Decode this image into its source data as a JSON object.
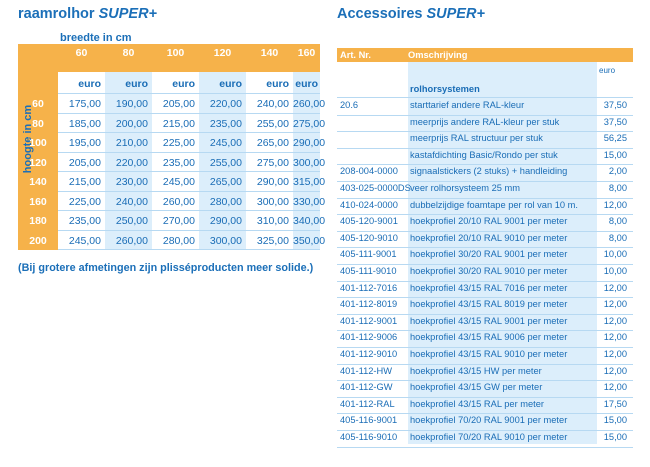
{
  "left": {
    "title_main": "raamrolhor ",
    "title_em": "SUPER+",
    "width_label": "breedte in cm",
    "height_label": "hoogte in cm",
    "widths": [
      "60",
      "80",
      "100",
      "120",
      "140",
      "160"
    ],
    "currency": "euro",
    "heights": [
      "60",
      "80",
      "100",
      "120",
      "140",
      "160",
      "180",
      "200"
    ],
    "prices": [
      [
        "175,00",
        "190,00",
        "205,00",
        "220,00",
        "240,00",
        "260,00"
      ],
      [
        "185,00",
        "200,00",
        "215,00",
        "235,00",
        "255,00",
        "275,00"
      ],
      [
        "195,00",
        "210,00",
        "225,00",
        "245,00",
        "265,00",
        "290,00"
      ],
      [
        "205,00",
        "220,00",
        "235,00",
        "255,00",
        "275,00",
        "300,00"
      ],
      [
        "215,00",
        "230,00",
        "245,00",
        "265,00",
        "290,00",
        "315,00"
      ],
      [
        "225,00",
        "240,00",
        "260,00",
        "280,00",
        "300,00",
        "330,00"
      ],
      [
        "235,00",
        "250,00",
        "270,00",
        "290,00",
        "310,00",
        "340,00"
      ],
      [
        "245,00",
        "260,00",
        "280,00",
        "300,00",
        "325,00",
        "350,00"
      ]
    ],
    "note": "(Bij grotere afmetingen zijn plisséproducten meer solide.)"
  },
  "right": {
    "title_main": "Accessoires ",
    "title_em": "SUPER+",
    "col_artnr": "Art. Nr.",
    "col_desc": "Omschrijving",
    "currency": "euro",
    "section": "rolhorsystemen",
    "rows": [
      {
        "nr": "20.6",
        "desc": "starttarief andere RAL-kleur",
        "price": "37,50"
      },
      {
        "nr": "",
        "desc": "meerprijs andere RAL-kleur per stuk",
        "price": "37,50"
      },
      {
        "nr": "",
        "desc": "meerprijs RAL structuur per stuk",
        "price": "56,25"
      },
      {
        "nr": "",
        "desc": "kastafdichting Basic/Rondo per stuk",
        "price": "15,00"
      },
      {
        "nr": "208-004-0000",
        "desc": "signaalstickers (2 stuks) + handleiding",
        "price": "2,00"
      },
      {
        "nr": "403-025-0000DS",
        "desc": "veer rolhorsysteem 25 mm",
        "price": "8,00"
      },
      {
        "nr": "410-024-0000",
        "desc": "dubbelzijdige foamtape per rol van 10 m.",
        "price": "12,00"
      },
      {
        "nr": "405-120-9001",
        "desc": "hoekprofiel 20/10 RAL 9001 per meter",
        "price": "8,00"
      },
      {
        "nr": "405-120-9010",
        "desc": "hoekprofiel 20/10 RAL 9010  per meter",
        "price": "8,00"
      },
      {
        "nr": "405-111-9001",
        "desc": "hoekprofiel 30/20 RAL 9001 per meter",
        "price": "10,00"
      },
      {
        "nr": "405-111-9010",
        "desc": "hoekprofiel 30/20 RAL 9010 per meter",
        "price": "10,00"
      },
      {
        "nr": "401-112-7016",
        "desc": "hoekprofiel 43/15 RAL 7016 per meter",
        "price": "12,00"
      },
      {
        "nr": "401-112-8019",
        "desc": "hoekprofiel 43/15 RAL 8019 per meter",
        "price": "12,00"
      },
      {
        "nr": "401-112-9001",
        "desc": "hoekprofiel 43/15 RAL 9001 per meter",
        "price": "12,00"
      },
      {
        "nr": "401-112-9006",
        "desc": "hoekprofiel 43/15 RAL 9006 per meter",
        "price": "12,00"
      },
      {
        "nr": "401-112-9010",
        "desc": "hoekprofiel 43/15 RAL 9010 per meter",
        "price": "12,00"
      },
      {
        "nr": "401-112-HW",
        "desc": "hoekprofiel 43/15 HW per meter",
        "price": "12,00"
      },
      {
        "nr": "401-112-GW",
        "desc": "hoekprofiel 43/15 GW per meter",
        "price": "12,00"
      },
      {
        "nr": "401-112-RAL",
        "desc": "hoekprofiel 43/15 RAL per meter",
        "price": "17,50"
      },
      {
        "nr": "405-116-9001",
        "desc": "hoekprofiel 70/20 RAL 9001 per meter",
        "price": "15,00"
      },
      {
        "nr": "405-116-9010",
        "desc": "hoekprofiel 70/20 RAL 9010 per meter",
        "price": "15,00"
      }
    ]
  },
  "colors": {
    "orange": "#f6b24a",
    "blue_text": "#1b6fb8",
    "light_blue": "#dceefb"
  }
}
